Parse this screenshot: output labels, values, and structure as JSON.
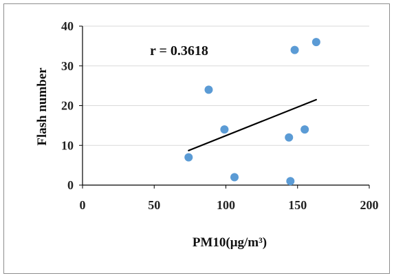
{
  "chart_data": {
    "type": "scatter",
    "title": "",
    "xlabel": "PM10(μg/m³)",
    "ylabel": "Flash number",
    "xlim": [
      0,
      200
    ],
    "ylim": [
      0,
      40
    ],
    "x_ticks": [
      "0",
      "50",
      "100",
      "150",
      "200"
    ],
    "y_ticks": [
      "0",
      "10",
      "20",
      "30",
      "40"
    ],
    "grid": "horizontal",
    "legend": "none",
    "annotation": "r = 0.3618",
    "series": [
      {
        "points": [
          {
            "x": 74,
            "y": 7
          },
          {
            "x": 88,
            "y": 24
          },
          {
            "x": 99,
            "y": 14
          },
          {
            "x": 106,
            "y": 2
          },
          {
            "x": 144,
            "y": 12
          },
          {
            "x": 145,
            "y": 1
          },
          {
            "x": 148,
            "y": 34
          },
          {
            "x": 155,
            "y": 14
          },
          {
            "x": 163,
            "y": 36
          }
        ],
        "color": "#5b9bd5"
      }
    ],
    "trendline": {
      "type": "linear",
      "color": "#000000",
      "x_range": [
        74,
        163
      ],
      "y_values": [
        8.7,
        21.5
      ]
    }
  }
}
